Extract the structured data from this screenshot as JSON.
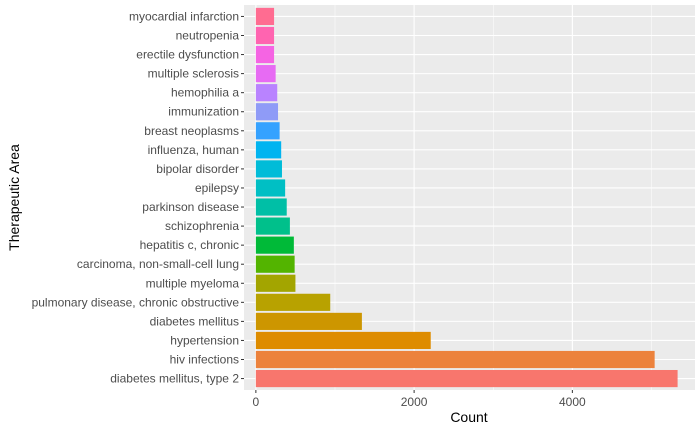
{
  "chart_data": {
    "type": "bar",
    "orientation": "horizontal",
    "xlabel": "Count",
    "ylabel": "Therapeutic Area",
    "xlim": [
      -150,
      5550
    ],
    "x_ticks": [
      0,
      2000,
      4000
    ],
    "grid": true,
    "legend": "none",
    "categories": [
      "diabetes mellitus, type 2",
      "hiv infections",
      "hypertension",
      "diabetes mellitus",
      "pulmonary disease, chronic obstructive",
      "multiple myeloma",
      "carcinoma, non-small-cell lung",
      "hepatitis c, chronic",
      "schizophrenia",
      "parkinson disease",
      "epilepsy",
      "bipolar disorder",
      "influenza, human",
      "breast neoplasms",
      "immunization",
      "hemophilia a",
      "multiple sclerosis",
      "erectile dysfunction",
      "neutropenia",
      "myocardial infarction"
    ],
    "values": [
      5330,
      5040,
      2210,
      1340,
      940,
      500,
      490,
      480,
      430,
      390,
      370,
      330,
      320,
      300,
      280,
      270,
      250,
      230,
      230,
      230
    ],
    "colors": [
      "#F8766D",
      "#EC823C",
      "#DE8C00",
      "#CD9600",
      "#B8A200",
      "#A3A500",
      "#53B400",
      "#00BA38",
      "#00C08B",
      "#00BFA6",
      "#00BFC4",
      "#00BCD8",
      "#00B4F0",
      "#35A2FF",
      "#8F9BF7",
      "#B983FF",
      "#E76BF3",
      "#F564E3",
      "#FF64B0",
      "#FF6C91"
    ]
  }
}
